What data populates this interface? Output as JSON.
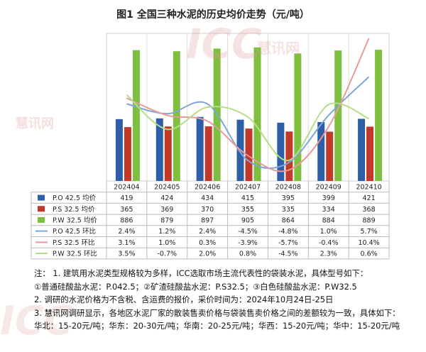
{
  "title": "图1 全国三种水泥的历史均价走势（元/吨）",
  "watermark": {
    "logo_text": "ICC",
    "brand_text": "慧讯网"
  },
  "chart_data": {
    "type": "bar",
    "categories": [
      "202404",
      "202405",
      "202406",
      "202407",
      "202408",
      "202409",
      "202410"
    ],
    "bar_series": [
      {
        "name": "P.O 42.5 均价",
        "color": "#2e5ea8",
        "values": [
          419,
          424,
          434,
          415,
          395,
          399,
          421
        ],
        "labels": [
          "419",
          "424",
          "434",
          "415",
          "395",
          "399",
          "421"
        ]
      },
      {
        "name": "P.S 32.5 均价",
        "color": "#c0392b",
        "values": [
          365,
          369,
          370,
          355,
          335,
          334,
          368
        ],
        "labels": [
          "365",
          "369",
          "370",
          "355",
          "335",
          "334",
          "368"
        ]
      },
      {
        "name": "P.W 32.5 均价",
        "color": "#7fbf3f",
        "values": [
          886,
          879,
          897,
          905,
          864,
          884,
          889
        ],
        "labels": [
          "886",
          "879",
          "897",
          "905",
          "864",
          "884",
          "889"
        ]
      }
    ],
    "line_series": [
      {
        "name": "P.O 42.5 环比",
        "color": "#7ea6d8",
        "values": [
          2.4,
          1.2,
          2.4,
          -4.5,
          -4.8,
          1.0,
          5.7
        ],
        "labels": [
          "2.4%",
          "1.2%",
          "2.4%",
          "-4.5%",
          "-4.8%",
          "1.0%",
          "5.7%"
        ]
      },
      {
        "name": "P.S 32.5 环比",
        "color": "#e89a9a",
        "values": [
          3.1,
          1.0,
          0.3,
          -3.9,
          -5.7,
          -0.4,
          10.4
        ],
        "labels": [
          "3.1%",
          "1.0%",
          "0.3%",
          "-3.9%",
          "-5.7%",
          "-0.4%",
          "10.4%"
        ]
      },
      {
        "name": "P.W 32.5 环比",
        "color": "#b8dd8a",
        "values": [
          3.5,
          -0.7,
          2.0,
          0.8,
          -4.5,
          2.3,
          0.6
        ],
        "labels": [
          "3.5%",
          "-0.7%",
          "2.0%",
          "0.8%",
          "-4.5%",
          "2.3%",
          "0.6%"
        ]
      }
    ],
    "grid": true,
    "legend": "table-below"
  },
  "notes": [
    "注： 1. 建筑用水泥类型规格较为多样，ICC选取市场主流代表性的袋装水泥，具体型号如下：",
    "①普通硅酸盐水泥：P.042.5；②矿渣硅酸盐水泥：P.S32.5；③白色硅酸盐水泥：P.W32.5",
    "2. 调研的水泥价格为不含税、含运费的报价，采价时间为：2024年10月24日-25日",
    "3. 慧讯网调研显示，各地区水泥厂家的散装售卖价格与袋装售卖价格之间的差额较为一致，具体如下：",
    "华北：15-20元/吨；华东：20-30元/吨；华南：20-25元/吨；华西：15-20元/吨；华中：15-20元/吨"
  ]
}
